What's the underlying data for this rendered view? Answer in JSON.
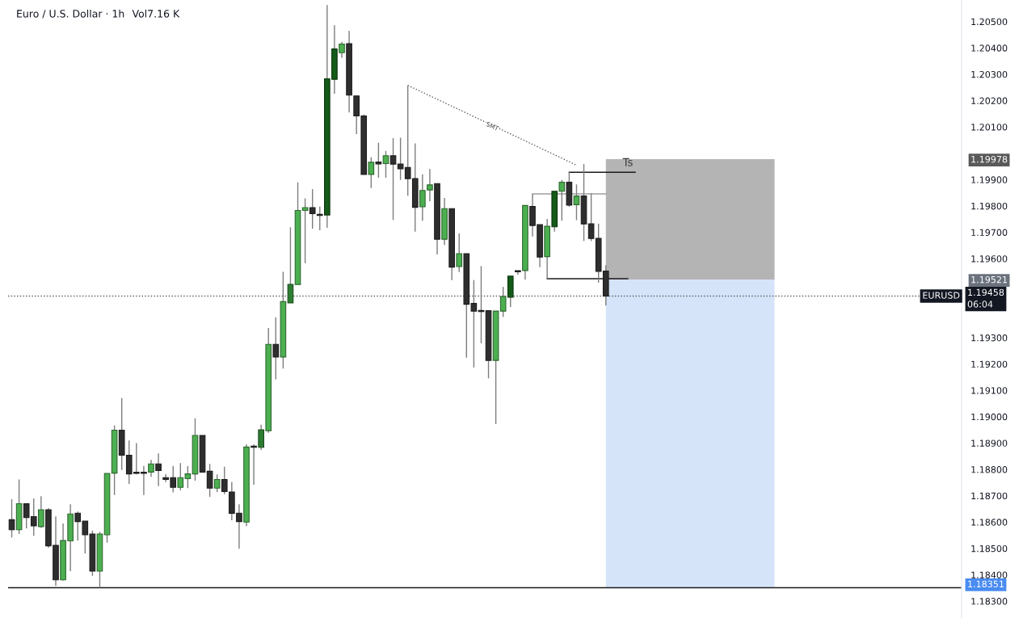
{
  "chart_data": {
    "type": "candlestick",
    "title": "Euro / U.S. Dollar · 1h",
    "subtitle": "Vol7.16 K",
    "categories": [
      null,
      null,
      null,
      null,
      null,
      null,
      null,
      null,
      null,
      null,
      null,
      null,
      null,
      null,
      null,
      null,
      null,
      null,
      null,
      null,
      null,
      null,
      null,
      null,
      null,
      null,
      null,
      null,
      null,
      null,
      null,
      null,
      null,
      null,
      null,
      null,
      null,
      null,
      null,
      null,
      null,
      null,
      null,
      null,
      null,
      null,
      null,
      null,
      null,
      null,
      null,
      null,
      null,
      null,
      null,
      null,
      null,
      null,
      null,
      null,
      null,
      null,
      null,
      null,
      null,
      null,
      null,
      null,
      null,
      null,
      null,
      null,
      null,
      null,
      null,
      null,
      null,
      null,
      null,
      null,
      null,
      null,
      null,
      null,
      null,
      null,
      null,
      null,
      null,
      null,
      null,
      null,
      null,
      null,
      null,
      null,
      null,
      null,
      null,
      null,
      null,
      null,
      null,
      null,
      null,
      null,
      null,
      null,
      null,
      null,
      null,
      null,
      null,
      null,
      null,
      null,
      null,
      null,
      null,
      null,
      null,
      null,
      null,
      null,
      null,
      null,
      null,
      null,
      null,
      null
    ],
    "ohlc": [
      [
        1.18609,
        1.18687,
        1.18542,
        1.18571
      ],
      [
        1.18571,
        1.18762,
        1.18555,
        1.1867
      ],
      [
        1.1867,
        1.18672,
        1.18576,
        1.18617
      ],
      [
        1.18621,
        1.1869,
        1.18548,
        1.18586
      ],
      [
        1.18583,
        1.18698,
        1.18578,
        1.18647
      ],
      [
        1.18647,
        1.18653,
        1.18502,
        1.1851
      ],
      [
        1.18512,
        1.18622,
        1.18358,
        1.18381
      ],
      [
        1.18381,
        1.18595,
        1.18378,
        1.1853
      ],
      [
        1.18529,
        1.18668,
        1.18414,
        1.18631
      ],
      [
        1.18634,
        1.1864,
        1.1853,
        1.18602
      ],
      [
        1.18604,
        1.18604,
        1.18481,
        1.18552
      ],
      [
        1.18555,
        1.18568,
        1.18396,
        1.18414
      ],
      [
        1.18414,
        1.18563,
        1.18351,
        1.18555
      ],
      [
        1.18552,
        1.18785,
        1.18522,
        1.18785
      ],
      [
        1.18786,
        1.18967,
        1.18703,
        1.18949
      ],
      [
        1.18949,
        1.19071,
        1.18798,
        1.18854
      ],
      [
        1.18854,
        1.1891,
        1.18745,
        1.18783
      ],
      [
        1.18787,
        1.189,
        1.18781,
        1.18787
      ],
      [
        1.18787,
        1.18813,
        1.18703,
        1.18787
      ],
      [
        1.1879,
        1.18836,
        1.18772,
        1.18821
      ],
      [
        1.18821,
        1.18861,
        1.18737,
        1.18796
      ],
      [
        1.18769,
        1.18783,
        1.18752,
        1.18762
      ],
      [
        1.18769,
        1.18813,
        1.18713,
        1.18732
      ],
      [
        1.18732,
        1.18824,
        1.18721,
        1.18769
      ],
      [
        1.18765,
        1.18813,
        1.18729,
        1.18783
      ],
      [
        1.18783,
        1.18994,
        1.18757,
        1.18929
      ],
      [
        1.18929,
        1.18929,
        1.1879,
        1.1879
      ],
      [
        1.18793,
        1.18821,
        1.18696,
        1.18729
      ],
      [
        1.18729,
        1.18781,
        1.18714,
        1.18762
      ],
      [
        1.18762,
        1.1881,
        1.18706,
        1.18716
      ],
      [
        1.18714,
        1.18752,
        1.18607,
        1.18633
      ],
      [
        1.18634,
        1.18668,
        1.18499,
        1.18602
      ],
      [
        1.186,
        1.18895,
        1.18585,
        1.18885
      ],
      [
        1.18887,
        1.18895,
        1.18742,
        1.18885
      ],
      [
        1.18884,
        1.1897,
        1.18874,
        1.1895
      ],
      [
        1.18947,
        1.19337,
        1.18939,
        1.19275
      ],
      [
        1.19275,
        1.19377,
        1.19142,
        1.19227
      ],
      [
        1.19227,
        1.1955,
        1.19183,
        1.19437
      ],
      [
        1.19432,
        1.19719,
        1.19432,
        1.19502
      ],
      [
        1.19502,
        1.1989,
        1.19502,
        1.19783
      ],
      [
        1.19783,
        1.19829,
        1.19583,
        1.19794
      ],
      [
        1.19794,
        1.19864,
        1.19714,
        1.19771
      ],
      [
        1.19767,
        1.19798,
        1.19708,
        1.19765
      ],
      [
        1.19766,
        1.20563,
        1.19717,
        1.20283
      ],
      [
        1.20281,
        1.20486,
        1.20226,
        1.20396
      ],
      [
        1.20382,
        1.20423,
        1.20363,
        1.20415
      ],
      [
        1.20416,
        1.20465,
        1.20155,
        1.20221
      ],
      [
        1.20218,
        1.20218,
        1.20073,
        1.20142
      ],
      [
        1.20142,
        1.20147,
        1.1992,
        1.1992
      ],
      [
        1.1992,
        1.19985,
        1.19868,
        1.19966
      ],
      [
        1.19967,
        1.2004,
        1.19907,
        1.1996
      ],
      [
        1.19961,
        1.20009,
        1.19907,
        1.19991
      ],
      [
        1.19991,
        1.20058,
        1.19747,
        1.19959
      ],
      [
        1.19959,
        1.20059,
        1.19899,
        1.19941
      ],
      [
        1.19946,
        1.20258,
        1.19839,
        1.19904
      ],
      [
        1.19904,
        1.20038,
        1.19703,
        1.19795
      ],
      [
        1.19797,
        1.1992,
        1.19744,
        1.19859
      ],
      [
        1.19861,
        1.1994,
        1.19818,
        1.1988
      ],
      [
        1.19885,
        1.19885,
        1.19616,
        1.19674
      ],
      [
        1.19674,
        1.19831,
        1.19652,
        1.1979
      ],
      [
        1.1979,
        1.1979,
        1.19519,
        1.19568
      ],
      [
        1.1957,
        1.19696,
        1.19549,
        1.19619
      ],
      [
        1.19619,
        1.19619,
        1.19224,
        1.19427
      ],
      [
        1.1943,
        1.19519,
        1.19187,
        1.19401
      ],
      [
        1.19401,
        1.19572,
        1.19279,
        1.19401
      ],
      [
        1.19403,
        1.19403,
        1.19146,
        1.19214
      ],
      [
        1.19214,
        1.19401,
        1.18972,
        1.19401
      ],
      [
        1.19401,
        1.19493,
        1.19379,
        1.19456
      ],
      [
        1.19454,
        1.19534,
        1.19417,
        1.19534
      ],
      [
        1.19553,
        1.19555,
        1.19539,
        1.19552
      ],
      [
        1.19555,
        1.19802,
        1.19521,
        1.19802
      ],
      [
        1.19798,
        1.19846,
        1.19684,
        1.19726
      ],
      [
        1.19729,
        1.19729,
        1.19568,
        1.19606
      ],
      [
        1.19608,
        1.19751,
        1.19524,
        1.19723
      ],
      [
        1.19721,
        1.19856,
        1.19703,
        1.19856
      ],
      [
        1.19856,
        1.19899,
        1.19744,
        1.1989
      ],
      [
        1.1989,
        1.19928,
        1.19797,
        1.19803
      ],
      [
        1.19805,
        1.19882,
        1.19746,
        1.19838
      ],
      [
        1.19838,
        1.19959,
        1.19667,
        1.19732
      ],
      [
        1.19732,
        1.19848,
        1.19667,
        1.19677
      ],
      [
        1.19677,
        1.19733,
        1.19509,
        1.19552
      ],
      [
        1.19553,
        1.19575,
        1.19422,
        1.19458
      ],
      null,
      null,
      null,
      null,
      null,
      null,
      null,
      null,
      null,
      null,
      null,
      null,
      null,
      null,
      null,
      null,
      null,
      null,
      null,
      null,
      null,
      null,
      null,
      null,
      null,
      null,
      null,
      null,
      null,
      null,
      null,
      null,
      null,
      null,
      null,
      null,
      null,
      null,
      null,
      null,
      null,
      null,
      null,
      null,
      null,
      null,
      null,
      null
    ],
    "colors": [
      "#2e2e2e",
      "#4caf50",
      "#2e2e2e",
      "#2e2e2e",
      "#4caf50",
      "#2e2e2e",
      "#2e2e2e",
      "#4caf50",
      "#4caf50",
      "#2e2e2e",
      "#2e2e2e",
      "#2e2e2e",
      "#4caf50",
      "#4caf50",
      "#4caf50",
      "#2e2e2e",
      "#2e2e2e",
      "#2e2e2e",
      "#2e2e2e",
      "#4caf50",
      "#2e2e2e",
      "#2e2e2e",
      "#2e2e2e",
      "#4caf50",
      "#4caf50",
      "#4caf50",
      "#2e2e2e",
      "#2e2e2e",
      "#4caf50",
      "#2e2e2e",
      "#2e2e2e",
      "#2e2e2e",
      "#4caf50",
      "#2e2e2e",
      "#2e7d32",
      "#4caf50",
      "#2e2e2e",
      "#4caf50",
      "#2e7d32",
      "#4caf50",
      "#4caf50",
      "#2e2e2e",
      "#2e2e2e",
      "#145a18",
      "#145a18",
      "#4caf50",
      "#2e2e2e",
      "#2e2e2e",
      "#2e2e2e",
      "#4caf50",
      "#2e2e2e",
      "#4caf50",
      "#2e2e2e",
      "#2e2e2e",
      "#2e2e2e",
      "#2e2e2e",
      "#4caf50",
      "#4caf50",
      "#2e2e2e",
      "#4caf50",
      "#2e2e2e",
      "#4caf50",
      "#2e2e2e",
      "#2e2e2e",
      "#2e2e2e",
      "#2e2e2e",
      "#4caf50",
      "#4caf50",
      "#145a18",
      "#2e2e2e",
      "#4caf50",
      "#2e2e2e",
      "#2e2e2e",
      "#4caf50",
      "#145a18",
      "#4caf50",
      "#2e2e2e",
      "#4caf50",
      "#2e2e2e",
      "#2e2e2e",
      "#2e2e2e",
      "#2e2e2e",
      null,
      null,
      null,
      null,
      null,
      null,
      null,
      null,
      null,
      null,
      null,
      null,
      null,
      null,
      null,
      null,
      null,
      null,
      null,
      null,
      null,
      null,
      null,
      null,
      null,
      null,
      null,
      null,
      null,
      null,
      null,
      null,
      null,
      null,
      null,
      null,
      null,
      null,
      null,
      null,
      null,
      null,
      null,
      null,
      null,
      null,
      null,
      null
    ],
    "series": [
      {
        "type": "line",
        "color": "#5d5d5d",
        "line_style": "dotted",
        "values": [
          null,
          null,
          null,
          null,
          null,
          null,
          null,
          null,
          null,
          null,
          null,
          null,
          null,
          null,
          null,
          null,
          null,
          null,
          null,
          null,
          null,
          null,
          null,
          null,
          null,
          null,
          null,
          null,
          null,
          null,
          null,
          null,
          null,
          null,
          null,
          null,
          null,
          null,
          null,
          null,
          null,
          null,
          null,
          null,
          null,
          null,
          null,
          null,
          null,
          null,
          null,
          null,
          null,
          null,
          1.20258,
          null,
          null,
          null,
          null,
          null,
          null,
          null,
          null,
          null,
          null,
          null,
          null,
          null,
          null,
          null,
          null,
          null,
          null,
          null,
          null,
          null,
          null,
          1.19955,
          null,
          null,
          null,
          null,
          null,
          null,
          null,
          null,
          null,
          null,
          null,
          null,
          null,
          null,
          null,
          null,
          null,
          null,
          null,
          null,
          null,
          null,
          null,
          null,
          null,
          null,
          null,
          null,
          null,
          null,
          null,
          null,
          null,
          null,
          null,
          null,
          null,
          null,
          null,
          null,
          null,
          null,
          null,
          null,
          null,
          null,
          null,
          null,
          null,
          null,
          null,
          null
        ]
      },
      {
        "type": "line",
        "color": "#9e9e9e",
        "line_style": "solid",
        "values": [
          null,
          null,
          null,
          null,
          null,
          null,
          null,
          null,
          null,
          null,
          null,
          null,
          null,
          null,
          null,
          null,
          null,
          null,
          null,
          null,
          null,
          null,
          null,
          null,
          null,
          null,
          null,
          null,
          null,
          null,
          null,
          null,
          null,
          null,
          null,
          null,
          null,
          null,
          null,
          null,
          null,
          null,
          null,
          null,
          null,
          null,
          null,
          null,
          null,
          null,
          null,
          null,
          null,
          null,
          null,
          null,
          null,
          null,
          null,
          null,
          null,
          null,
          null,
          null,
          null,
          null,
          null,
          null,
          null,
          null,
          null,
          1.19846,
          1.19846,
          1.19846,
          1.19846,
          1.19846,
          1.19846,
          1.19846,
          1.19846,
          1.19846,
          1.19846,
          1.19846,
          null,
          null,
          null,
          null,
          null,
          null,
          null,
          null,
          null,
          null,
          null,
          null,
          null,
          null,
          null,
          null,
          null,
          null,
          null,
          null,
          null,
          null,
          null,
          null,
          null,
          null,
          null,
          null,
          null,
          null,
          null,
          null,
          null,
          null,
          null,
          null,
          null,
          null,
          null,
          null,
          null,
          null,
          null,
          null,
          null,
          null,
          null,
          null
        ]
      },
      {
        "type": "line",
        "color": "#1a1a1a",
        "line_style": "solid",
        "values": [
          null,
          null,
          null,
          null,
          null,
          null,
          null,
          null,
          null,
          null,
          null,
          null,
          null,
          null,
          null,
          null,
          null,
          null,
          null,
          null,
          null,
          null,
          null,
          null,
          null,
          null,
          null,
          null,
          null,
          null,
          null,
          null,
          null,
          null,
          null,
          null,
          null,
          null,
          null,
          null,
          null,
          null,
          null,
          null,
          null,
          null,
          null,
          null,
          null,
          null,
          null,
          null,
          null,
          null,
          null,
          null,
          null,
          null,
          null,
          null,
          null,
          null,
          null,
          null,
          null,
          null,
          null,
          null,
          null,
          null,
          null,
          null,
          null,
          1.19524,
          1.19524,
          1.19524,
          1.19524,
          1.19524,
          1.19524,
          1.19524,
          1.19524,
          1.19524,
          1.19524,
          1.19524,
          1.19524,
          null,
          null,
          null,
          null,
          null,
          null,
          null,
          null,
          null,
          null,
          null,
          null,
          null,
          null,
          null,
          null,
          null,
          null,
          null,
          null,
          null,
          null,
          null,
          null,
          null,
          null,
          null,
          null,
          null,
          null,
          null,
          null,
          null,
          null,
          null,
          null,
          null,
          null,
          null,
          null,
          null,
          null,
          null,
          null,
          null
        ]
      },
      {
        "type": "line",
        "color": "#1a1a1a",
        "line_style": "solid",
        "values": [
          null,
          null,
          null,
          null,
          null,
          null,
          null,
          null,
          null,
          null,
          null,
          null,
          null,
          null,
          null,
          null,
          null,
          null,
          null,
          null,
          null,
          null,
          null,
          null,
          null,
          null,
          null,
          null,
          null,
          null,
          null,
          null,
          null,
          null,
          null,
          null,
          null,
          null,
          null,
          null,
          null,
          null,
          null,
          null,
          null,
          null,
          null,
          null,
          null,
          null,
          null,
          null,
          null,
          null,
          null,
          null,
          null,
          null,
          null,
          null,
          null,
          null,
          null,
          null,
          null,
          null,
          null,
          null,
          null,
          null,
          null,
          null,
          null,
          null,
          null,
          null,
          1.19928,
          1.19928,
          1.19928,
          1.19928,
          1.19928,
          1.19928,
          1.19928,
          1.19928,
          1.19928,
          1.19928,
          null,
          null,
          null,
          null,
          null,
          null,
          null,
          null,
          null,
          null,
          null,
          null,
          null,
          null,
          null,
          null,
          null,
          null,
          null,
          null,
          null,
          null,
          null,
          null,
          null,
          null,
          null,
          null,
          null,
          null,
          null,
          null,
          null,
          null,
          null,
          null,
          null,
          null,
          null,
          null,
          null,
          null,
          null,
          null
        ]
      }
    ],
    "ylim": [
      1.18236,
      1.20582
    ],
    "yticks": [
      {
        "value": 1.183,
        "label": "1.18300"
      },
      {
        "value": 1.184,
        "label": "1.18400"
      },
      {
        "value": 1.185,
        "label": "1.18500"
      },
      {
        "value": 1.186,
        "label": "1.18600"
      },
      {
        "value": 1.187,
        "label": "1.18700"
      },
      {
        "value": 1.188,
        "label": "1.18800"
      },
      {
        "value": 1.189,
        "label": "1.18900"
      },
      {
        "value": 1.19,
        "label": "1.19000"
      },
      {
        "value": 1.191,
        "label": "1.19100"
      },
      {
        "value": 1.192,
        "label": "1.19200"
      },
      {
        "value": 1.193,
        "label": "1.19300"
      },
      {
        "value": 1.19521,
        "label": "1.19521"
      },
      {
        "value": 1.196,
        "label": "1.19600"
      },
      {
        "value": 1.197,
        "label": "1.19700"
      },
      {
        "value": 1.198,
        "label": "1.19800"
      },
      {
        "value": 1.199,
        "label": "1.19900"
      },
      {
        "value": 1.19978,
        "label": "1.19978"
      },
      {
        "value": 1.201,
        "label": "1.20100"
      },
      {
        "value": 1.202,
        "label": "1.20200"
      },
      {
        "value": 1.203,
        "label": "1.20300"
      },
      {
        "value": 1.204,
        "label": "1.20400"
      },
      {
        "value": 1.205,
        "label": "1.20500"
      }
    ],
    "ref_lines": [
      {
        "axis": "y",
        "value": 1.19458,
        "label": "1.19458\n06:04",
        "color": "#5d5d5d",
        "line_style": "dotted"
      },
      {
        "axis": "y",
        "value": 1.18351,
        "label": "1.18351",
        "color": "#1a1a1a",
        "line_style": "solid"
      }
    ],
    "bands": [
      {
        "axis": "y",
        "from": 1.19521,
        "to": 1.19978,
        "color": "#b4b4b4"
      },
      {
        "axis": "y",
        "from": 1.18351,
        "to": 1.19521,
        "color": "#d6e4fa"
      }
    ],
    "annotations": [
      {
        "text": "SMT",
        "y": 1.20101
      },
      {
        "text": "Ts",
        "y": 1.19963
      },
      {
        "text": "EURUSD",
        "y": 1.19458
      }
    ]
  }
}
